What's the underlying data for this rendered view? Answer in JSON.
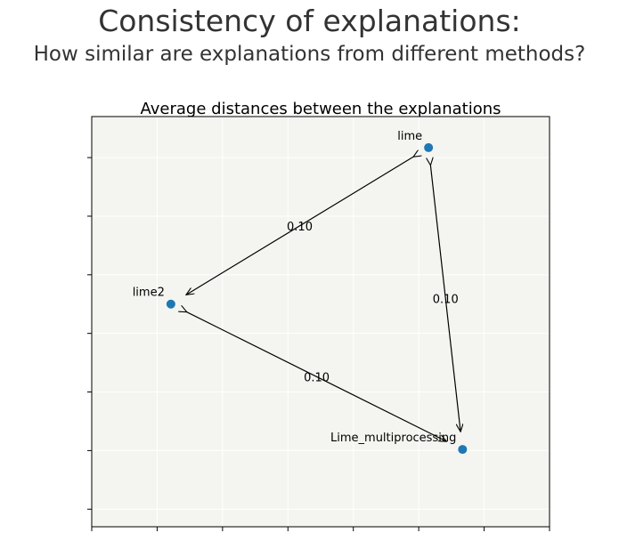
{
  "page": {
    "title": "Consistency of explanations:",
    "subtitle": "How similar are explanations from different methods?"
  },
  "colors": {
    "plot_background": "#f4f5f0",
    "grid": "#ffffff",
    "point": "#1f77b4",
    "arrow": "#000000"
  },
  "chart_data": {
    "type": "scatter",
    "title": "Average distances between the explanations",
    "xlabel": "",
    "ylabel": "",
    "xlim": [
      0,
      7
    ],
    "ylim": [
      -0.3,
      6.7
    ],
    "grid": true,
    "tick_labels_shown": false,
    "points": [
      {
        "name": "lime",
        "x": 5.15,
        "y": 6.17
      },
      {
        "name": "lime2",
        "x": 1.21,
        "y": 3.5
      },
      {
        "name": "Lime_multiprocessing",
        "x": 5.67,
        "y": 1.02
      }
    ],
    "edges": [
      {
        "from": "lime",
        "to": "lime2",
        "label": "0.10"
      },
      {
        "from": "lime",
        "to": "Lime_multiprocessing",
        "label": "0.10"
      },
      {
        "from": "lime2",
        "to": "Lime_multiprocessing",
        "label": "0.10"
      }
    ]
  }
}
